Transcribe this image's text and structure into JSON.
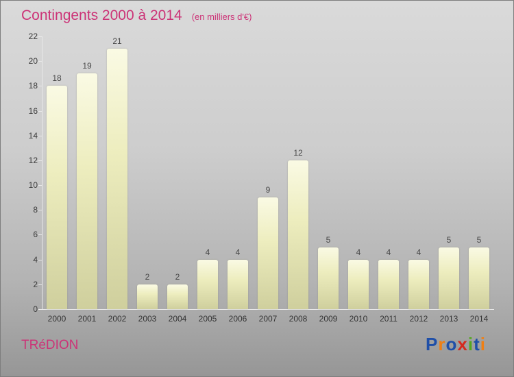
{
  "title": "Contingents 2000 à 2014",
  "subtitle": "(en milliers d'€)",
  "footer": {
    "place": "TRéDION",
    "logo_letters": [
      {
        "ch": "P",
        "color": "#1f4fa8"
      },
      {
        "ch": "r",
        "color": "#f07f13"
      },
      {
        "ch": "o",
        "color": "#1f4fa8"
      },
      {
        "ch": "x",
        "color": "#d42a1e"
      },
      {
        "ch": "i",
        "color": "#55a81f"
      },
      {
        "ch": "t",
        "color": "#1f4fa8"
      },
      {
        "ch": "i",
        "color": "#f07f13"
      }
    ]
  },
  "colors": {
    "accent": "#cc3377",
    "bar_top": "#fafae4",
    "bar_bottom": "#cfcf9d",
    "axis": "#e9e9e9",
    "tick_text": "#3a3a3a"
  },
  "chart_data": {
    "type": "bar",
    "title": "Contingents 2000 à 2014",
    "subtitle": "(en milliers d'€)",
    "categories": [
      "2000",
      "2001",
      "2002",
      "2003",
      "2004",
      "2005",
      "2006",
      "2007",
      "2008",
      "2009",
      "2010",
      "2011",
      "2012",
      "2013",
      "2014"
    ],
    "values": [
      18,
      19,
      21,
      2,
      2,
      4,
      4,
      9,
      12,
      5,
      4,
      4,
      4,
      5,
      5
    ],
    "xlabel": "",
    "ylabel": "",
    "ylim": [
      0,
      22
    ],
    "yticks": [
      0,
      2,
      4,
      6,
      8,
      10,
      12,
      14,
      16,
      18,
      20,
      22
    ],
    "grid": false,
    "legend": false,
    "value_labels": true
  }
}
